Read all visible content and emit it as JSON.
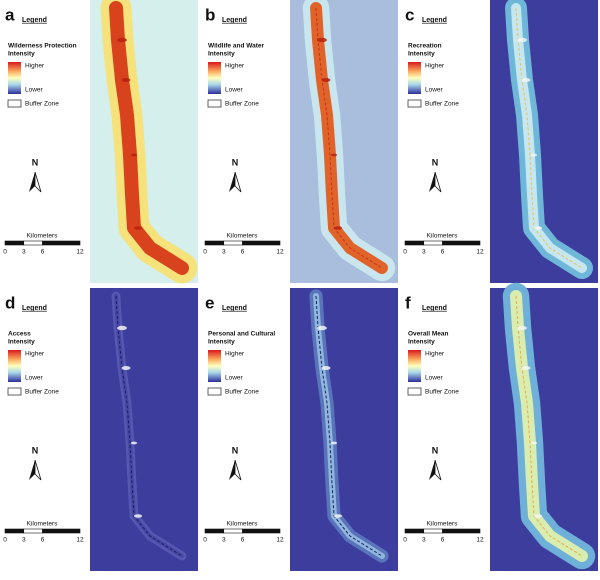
{
  "panels": [
    {
      "letter": "a",
      "legend": "Legend",
      "title": "Wilderness Protection",
      "intensity": "Intensity",
      "higher": "Higher",
      "lower": "Lower",
      "buffer": "Buffer Zone",
      "scale_title": "Kilometers",
      "scale_ticks": [
        0,
        3,
        6,
        12
      ],
      "north": "N"
    },
    {
      "letter": "b",
      "legend": "Legend",
      "title": "Wildlife and Water",
      "intensity": "Intensity",
      "higher": "Higher",
      "lower": "Lower",
      "buffer": "Buffer Zone",
      "scale_title": "Kilometers",
      "scale_ticks": [
        0,
        3,
        6,
        12
      ],
      "north": "N"
    },
    {
      "letter": "c",
      "legend": "Legend",
      "title": "Recreation",
      "intensity": "Intensity",
      "higher": "Higher",
      "lower": "Lower",
      "buffer": "Buffer Zone",
      "scale_title": "Kilometers",
      "scale_ticks": [
        0,
        3,
        6,
        12
      ],
      "north": "N"
    },
    {
      "letter": "d",
      "legend": "Legend",
      "title": "Access",
      "intensity": "Intensity",
      "higher": "Higher",
      "lower": "Lower",
      "buffer": "Buffer Zone",
      "scale_title": "Kilometers",
      "scale_ticks": [
        0,
        3,
        6,
        12
      ],
      "north": "N"
    },
    {
      "letter": "e",
      "legend": "Legend",
      "title": "Personal and Cultural",
      "intensity": "Intensity",
      "higher": "Higher",
      "lower": "Lower",
      "buffer": "Buffer Zone",
      "scale_title": "Kilometers",
      "scale_ticks": [
        0,
        3,
        6,
        12
      ],
      "north": "N"
    },
    {
      "letter": "f",
      "legend": "Legend",
      "title": "Overall Mean",
      "intensity": "Intensity",
      "higher": "Higher",
      "lower": "Lower",
      "buffer": "Buffer Zone",
      "scale_title": "Kilometers",
      "scale_ticks": [
        0,
        3,
        6,
        12
      ],
      "north": "N"
    }
  ]
}
